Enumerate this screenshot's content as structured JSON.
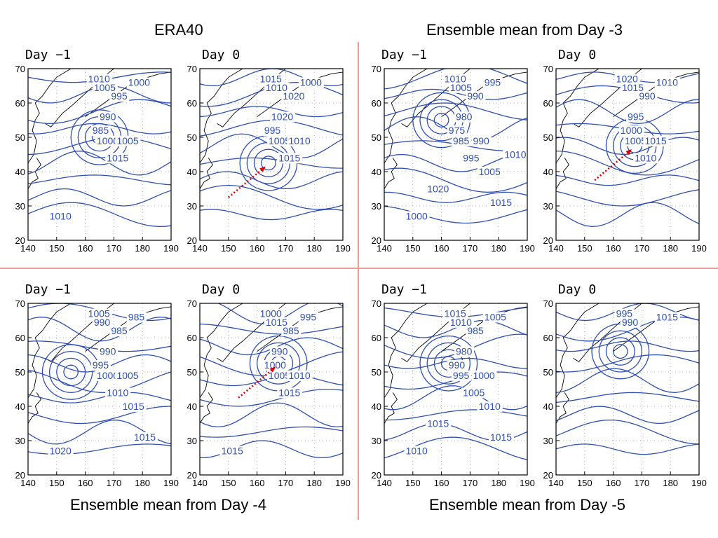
{
  "quadrants": [
    {
      "title": "ERA40",
      "panels": [
        {
          "title": "Day −1",
          "labels": [
            "1010",
            "1005",
            "1000",
            "995",
            "990",
            "985",
            "1000",
            "1005",
            "1015",
            "1010"
          ],
          "arrow": false
        },
        {
          "title": "Day 0",
          "labels": [
            "1015",
            "1010",
            "1000",
            "1020",
            "1020",
            "995",
            "1005",
            "1010",
            "1015"
          ],
          "arrow": true
        }
      ]
    },
    {
      "title": "Ensemble mean from Day -3",
      "panels": [
        {
          "title": "Day −1",
          "labels": [
            "1010",
            "1005",
            "995",
            "990",
            "980",
            "975",
            "985",
            "990",
            "995",
            "1000",
            "1005",
            "1015",
            "1020",
            "1010"
          ],
          "arrow": false
        },
        {
          "title": "Day 0",
          "labels": [
            "1020",
            "1015",
            "1010",
            "990",
            "995",
            "1000",
            "1005",
            "1015",
            "1010"
          ],
          "arrow": true
        }
      ]
    },
    {
      "title": "Ensemble mean from Day -4",
      "panels": [
        {
          "title": "Day −1",
          "labels": [
            "1005",
            "990",
            "985",
            "985",
            "990",
            "995",
            "1000",
            "1005",
            "1010",
            "1020",
            "1015",
            "1015"
          ],
          "arrow": false
        },
        {
          "title": "Day 0",
          "labels": [
            "1000",
            "1015",
            "995",
            "985",
            "990",
            "1000",
            "1005",
            "1010",
            "1015",
            "1015"
          ],
          "arrow": true
        }
      ]
    },
    {
      "title": "Ensemble mean from Day -5",
      "panels": [
        {
          "title": "Day −1",
          "labels": [
            "1015",
            "1010",
            "1005",
            "985",
            "980",
            "990",
            "995",
            "1000",
            "1005",
            "1010",
            "1010",
            "1015",
            "1015"
          ],
          "arrow": false
        },
        {
          "title": "Day 0",
          "labels": [
            "995",
            "990",
            "1015"
          ],
          "arrow": false
        }
      ]
    }
  ],
  "axes": {
    "x_ticks": [
      "140",
      "150",
      "160",
      "170",
      "180",
      "190"
    ],
    "y_ticks": [
      "70",
      "60",
      "50",
      "40",
      "30",
      "20"
    ]
  },
  "colors": {
    "contour": "#2f4fb5",
    "arrow": "#e00000",
    "divider": "#e8a09a",
    "coast": "#000000"
  }
}
